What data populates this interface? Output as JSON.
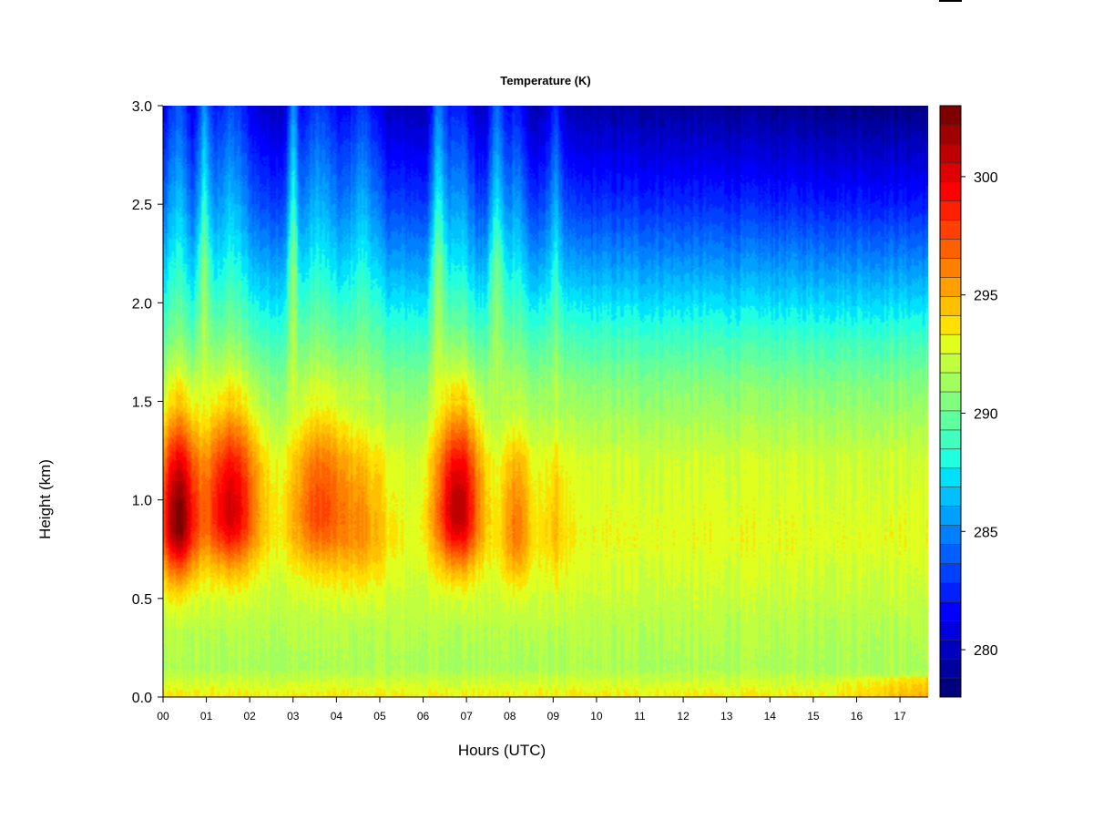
{
  "chart_data": {
    "type": "heatmap",
    "title": "Temperature (K)",
    "xlabel": "Hours (UTC)",
    "ylabel": "Height (km)",
    "xlim": [
      0,
      17.65
    ],
    "ylim": [
      0.0,
      3.0
    ],
    "x_ticks": [
      0,
      1,
      2,
      3,
      4,
      5,
      6,
      7,
      8,
      9,
      10,
      11,
      12,
      13,
      14,
      15,
      16,
      17
    ],
    "x_tick_labels": [
      "00",
      "01",
      "02",
      "03",
      "04",
      "05",
      "06",
      "07",
      "08",
      "09",
      "10",
      "11",
      "12",
      "13",
      "14",
      "15",
      "16",
      "17"
    ],
    "y_ticks": [
      0.0,
      0.5,
      1.0,
      1.5,
      2.0,
      2.5,
      3.0
    ],
    "y_tick_labels": [
      "0.0",
      "0.5",
      "1.0",
      "1.5",
      "2.0",
      "2.5",
      "3.0"
    ],
    "colorbar": {
      "range": [
        278,
        303
      ],
      "levels": 25,
      "ticks": [
        280,
        285,
        290,
        295,
        300
      ],
      "tick_labels": [
        "280",
        "285",
        "290",
        "295",
        "300"
      ],
      "colors": [
        "#00007f",
        "#00009f",
        "#0000bf",
        "#0000df",
        "#0000ff",
        "#0020ff",
        "#0040ff",
        "#0060ff",
        "#0080ff",
        "#00a0ff",
        "#00c0ff",
        "#00e0ff",
        "#20ffdf",
        "#40ffbf",
        "#60ff9f",
        "#80ff7f",
        "#a0ff5f",
        "#c0ff3f",
        "#e0ff1f",
        "#ffe000",
        "#ffc000",
        "#ffa000",
        "#ff8000",
        "#ff6000",
        "#ff4000",
        "#ff2000",
        "#ff0000",
        "#df0000",
        "#bf0000",
        "#9f0000",
        "#7f0000"
      ]
    },
    "surface_profile": [
      {
        "height": 0.0,
        "value": 293.5
      },
      {
        "height": 0.15,
        "value": 291.5
      },
      {
        "height": 0.4,
        "value": 292
      },
      {
        "height": 0.8,
        "value": 293
      },
      {
        "height": 1.2,
        "value": 292.5
      },
      {
        "height": 1.6,
        "value": 290.5
      },
      {
        "height": 2.0,
        "value": 287.5
      },
      {
        "height": 2.5,
        "value": 283.5
      },
      {
        "height": 3.0,
        "value": 280.5
      }
    ],
    "warm_plumes": [
      {
        "center_hour": 0.35,
        "half_width_hours": 0.45,
        "peak_height": 0.9,
        "peak_value": 302.5
      },
      {
        "center_hour": 1.55,
        "half_width_hours": 0.7,
        "peak_height": 0.95,
        "peak_value": 300.5
      },
      {
        "center_hour": 3.6,
        "half_width_hours": 0.7,
        "peak_height": 0.95,
        "peak_value": 297.5
      },
      {
        "center_hour": 4.6,
        "half_width_hours": 0.6,
        "peak_height": 0.85,
        "peak_value": 295.5
      },
      {
        "center_hour": 6.8,
        "half_width_hours": 0.55,
        "peak_height": 0.95,
        "peak_value": 301.5
      },
      {
        "center_hour": 8.15,
        "half_width_hours": 0.35,
        "peak_height": 0.85,
        "peak_value": 296.5
      },
      {
        "center_hour": 9.05,
        "half_width_hours": 0.3,
        "peak_height": 0.85,
        "peak_value": 294.5
      }
    ],
    "cool_columns": [
      {
        "center_hour": 0.95,
        "half_width_hours": 0.14
      },
      {
        "center_hour": 3.0,
        "half_width_hours": 0.12
      },
      {
        "center_hour": 6.35,
        "half_width_hours": 0.16
      },
      {
        "center_hour": 7.7,
        "half_width_hours": 0.18
      }
    ]
  }
}
